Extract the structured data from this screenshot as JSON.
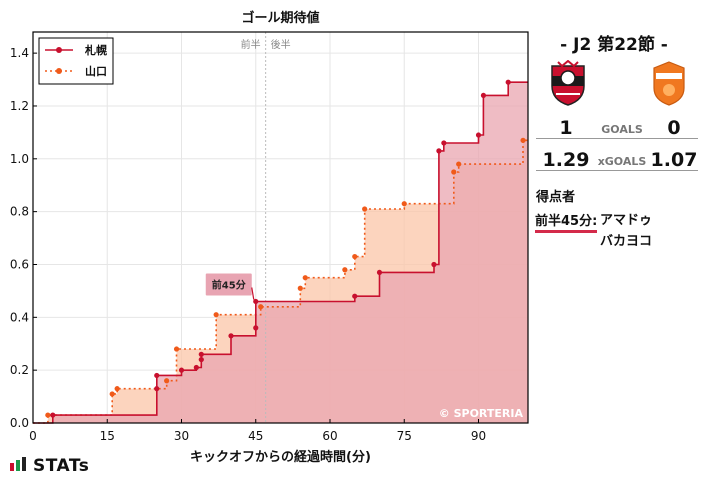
{
  "match": {
    "title": "- J2 第22節 -",
    "home_goals": "1",
    "away_goals": "0",
    "goals_label": "GOALS",
    "home_xg": "1.29",
    "away_xg": "1.07",
    "xg_label": "xGOALS",
    "home_crest": "sapporo-crest",
    "away_crest": "yamaguchi-crest"
  },
  "scorers": {
    "label": "得点者",
    "entries": [
      {
        "time": "前半45分:",
        "names": [
          "アマドゥ",
          "バカヨコ"
        ]
      }
    ]
  },
  "brand": {
    "stats": "STATs",
    "icon": "stats-bars-icon"
  },
  "chart_data": {
    "type": "line",
    "step": true,
    "title": "ゴール期待値",
    "xlabel": "キックオフからの経過時間(分)",
    "ylabel": "",
    "xlim": [
      0,
      100
    ],
    "ylim": [
      0,
      1.48
    ],
    "xticks": [
      0,
      15,
      30,
      45,
      60,
      75,
      90
    ],
    "yticks": [
      0.0,
      0.2,
      0.4,
      0.6,
      0.8,
      1.0,
      1.2,
      1.4
    ],
    "half_markers": {
      "first": "前半",
      "second": "後半",
      "x": 47
    },
    "grid": true,
    "legend_position": "top-left",
    "watermark": "© SPORTERIA",
    "colors": {
      "home": "#c8102e",
      "away": "#f05a1a",
      "home_fill": "#eaa5b0",
      "away_fill": "#fbc6a8",
      "overlap_fill": "#f2aaa2",
      "annotation_bg": "#e8a4b2"
    },
    "series": [
      {
        "name": "札幌",
        "style": "solid",
        "points": [
          [
            4,
            0.03
          ],
          [
            25,
            0.13
          ],
          [
            25,
            0.18
          ],
          [
            30,
            0.2
          ],
          [
            33,
            0.21
          ],
          [
            34,
            0.24
          ],
          [
            34,
            0.26
          ],
          [
            40,
            0.33
          ],
          [
            45,
            0.36
          ],
          [
            45,
            0.46
          ],
          [
            65,
            0.48
          ],
          [
            70,
            0.57
          ],
          [
            81,
            0.6
          ],
          [
            82,
            1.03
          ],
          [
            83,
            1.06
          ],
          [
            90,
            1.09
          ],
          [
            91,
            1.24
          ],
          [
            96,
            1.29
          ],
          [
            100,
            1.29
          ]
        ]
      },
      {
        "name": "山口",
        "style": "dotted",
        "points": [
          [
            3,
            0.03
          ],
          [
            16,
            0.11
          ],
          [
            17,
            0.13
          ],
          [
            27,
            0.16
          ],
          [
            29,
            0.28
          ],
          [
            37,
            0.41
          ],
          [
            46,
            0.44
          ],
          [
            54,
            0.51
          ],
          [
            55,
            0.55
          ],
          [
            63,
            0.58
          ],
          [
            65,
            0.63
          ],
          [
            67,
            0.81
          ],
          [
            75,
            0.83
          ],
          [
            85,
            0.95
          ],
          [
            86,
            0.98
          ],
          [
            99,
            1.07
          ],
          [
            100,
            1.07
          ]
        ]
      }
    ],
    "annotations": [
      {
        "label": "前45分",
        "x": 45,
        "y": 0.46
      }
    ]
  }
}
